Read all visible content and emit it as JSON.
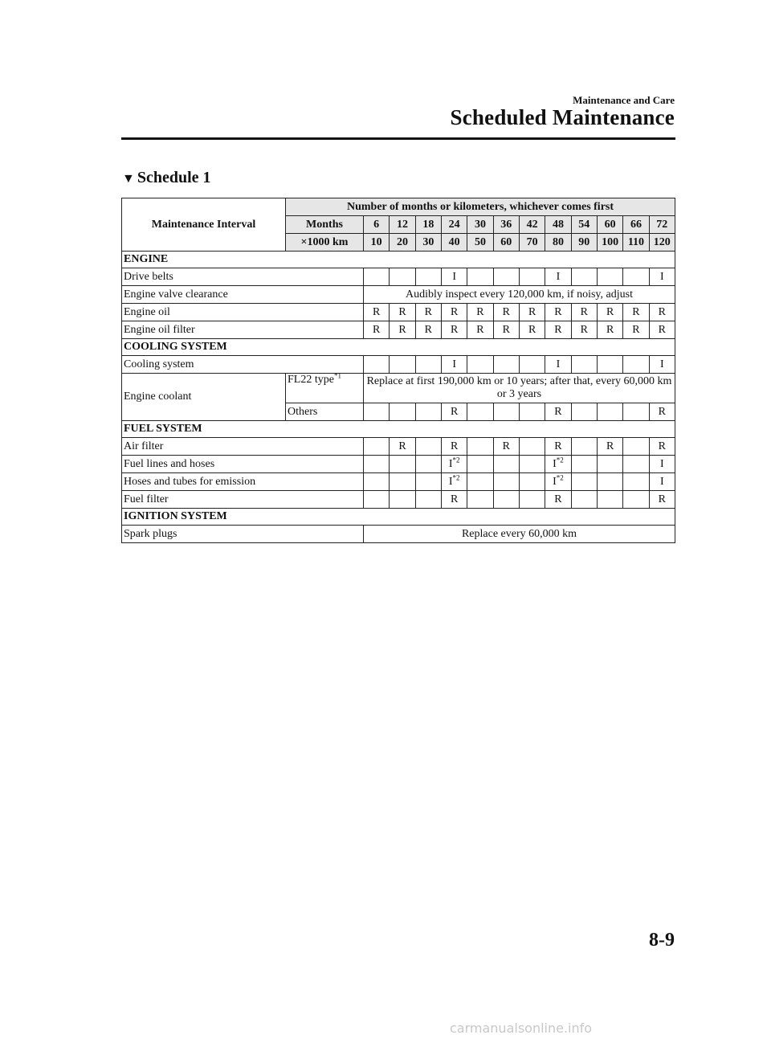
{
  "header": {
    "section": "Maintenance and Care",
    "title": "Scheduled Maintenance"
  },
  "schedule_title": "Schedule 1",
  "table": {
    "interval_label": "Maintenance Interval",
    "span_header": "Number of months or kilometers, whichever comes first",
    "months_label": "Months",
    "months": [
      "6",
      "12",
      "18",
      "24",
      "30",
      "36",
      "42",
      "48",
      "54",
      "60",
      "66",
      "72"
    ],
    "km_label": "×1000 km",
    "km": [
      "10",
      "20",
      "30",
      "40",
      "50",
      "60",
      "70",
      "80",
      "90",
      "100",
      "110",
      "120"
    ],
    "rows": [
      {
        "type": "section",
        "label": "ENGINE"
      },
      {
        "type": "marks",
        "label": "Drive belts",
        "cells": [
          "",
          "",
          "",
          "I",
          "",
          "",
          "",
          "I",
          "",
          "",
          "",
          "I"
        ]
      },
      {
        "type": "span",
        "label": "Engine valve clearance",
        "text": "Audibly inspect every 120,000 km, if noisy, adjust"
      },
      {
        "type": "marks",
        "label": "Engine oil",
        "cells": [
          "R",
          "R",
          "R",
          "R",
          "R",
          "R",
          "R",
          "R",
          "R",
          "R",
          "R",
          "R"
        ]
      },
      {
        "type": "marks",
        "label": "Engine oil filter",
        "cells": [
          "R",
          "R",
          "R",
          "R",
          "R",
          "R",
          "R",
          "R",
          "R",
          "R",
          "R",
          "R"
        ]
      },
      {
        "type": "section",
        "label": "COOLING SYSTEM"
      },
      {
        "type": "marks",
        "label": "Cooling system",
        "cells": [
          "",
          "",
          "",
          "I",
          "",
          "",
          "",
          "I",
          "",
          "",
          "",
          "I"
        ]
      },
      {
        "type": "coolant",
        "label": "Engine coolant",
        "sub1": "FL22 type",
        "sub1_note": "*1",
        "text": "Replace at first 190,000 km or 10 years; after that, every 60,000 km or 3 years",
        "sub2": "Others",
        "cells": [
          "",
          "",
          "",
          "R",
          "",
          "",
          "",
          "R",
          "",
          "",
          "",
          "R"
        ]
      },
      {
        "type": "section",
        "label": "FUEL SYSTEM"
      },
      {
        "type": "marks",
        "label": "Air filter",
        "cells": [
          "",
          "R",
          "",
          "R",
          "",
          "R",
          "",
          "R",
          "",
          "R",
          "",
          "R"
        ]
      },
      {
        "type": "marks",
        "label": "Fuel lines and hoses",
        "cells": [
          "",
          "",
          "",
          "I*2",
          "",
          "",
          "",
          "I*2",
          "",
          "",
          "",
          "I"
        ]
      },
      {
        "type": "marks",
        "label": "Hoses and tubes for emission",
        "cells": [
          "",
          "",
          "",
          "I*2",
          "",
          "",
          "",
          "I*2",
          "",
          "",
          "",
          "I"
        ]
      },
      {
        "type": "marks",
        "label": "Fuel filter",
        "cells": [
          "",
          "",
          "",
          "R",
          "",
          "",
          "",
          "R",
          "",
          "",
          "",
          "R"
        ]
      },
      {
        "type": "section",
        "label": "IGNITION SYSTEM"
      },
      {
        "type": "span",
        "label": "Spark plugs",
        "text": "Replace every 60,000 km"
      }
    ]
  },
  "page_number": "8-9",
  "watermark": "carmanualsonline.info"
}
